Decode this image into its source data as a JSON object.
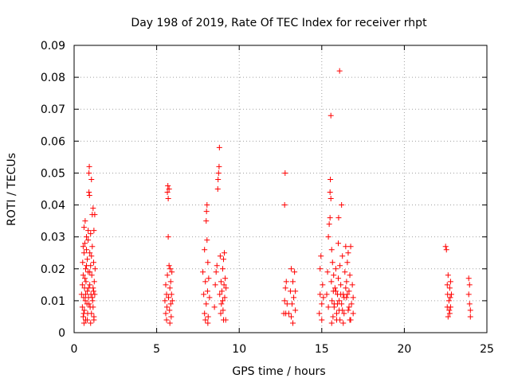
{
  "chart_data": {
    "type": "scatter",
    "title": "Day 198 of 2019, Rate Of TEC Index for receiver rhpt",
    "xlabel": "GPS time / hours",
    "ylabel": "ROTI / TECUs",
    "xlim": [
      0,
      25
    ],
    "ylim": [
      0,
      0.09
    ],
    "xticks": [
      0,
      5,
      10,
      15,
      20,
      25
    ],
    "xtick_labels": [
      "0",
      "5",
      "10",
      "15",
      "20",
      "25"
    ],
    "yticks": [
      0,
      0.01,
      0.02,
      0.03,
      0.04,
      0.05,
      0.06,
      0.07,
      0.08,
      0.09
    ],
    "ytick_labels": [
      "0",
      "0.01",
      "0.02",
      "0.03",
      "0.04",
      "0.05",
      "0.06",
      "0.07",
      "0.08",
      "0.09"
    ],
    "grid": true,
    "marker": "+",
    "color": "#ff0000",
    "series": [
      {
        "name": "ROTI",
        "points": [
          [
            0.45,
            0.012
          ],
          [
            0.5,
            0.008
          ],
          [
            0.5,
            0.015
          ],
          [
            0.52,
            0.022
          ],
          [
            0.55,
            0.005
          ],
          [
            0.55,
            0.018
          ],
          [
            0.58,
            0.011
          ],
          [
            0.6,
            0.025
          ],
          [
            0.6,
            0.033
          ],
          [
            0.62,
            0.007
          ],
          [
            0.63,
            0.014
          ],
          [
            0.65,
            0.028
          ],
          [
            0.67,
            0.035
          ],
          [
            0.68,
            0.01
          ],
          [
            0.7,
            0.004
          ],
          [
            0.7,
            0.02
          ],
          [
            0.72,
            0.016
          ],
          [
            0.75,
            0.026
          ],
          [
            0.75,
            0.03
          ],
          [
            0.78,
            0.009
          ],
          [
            0.8,
            0.013
          ],
          [
            0.8,
            0.023
          ],
          [
            0.82,
            0.006
          ],
          [
            0.85,
            0.019
          ],
          [
            0.85,
            0.032
          ],
          [
            0.87,
            0.011
          ],
          [
            0.9,
            0.044
          ],
          [
            0.9,
            0.05
          ],
          [
            0.92,
            0.052
          ],
          [
            0.93,
            0.043
          ],
          [
            0.95,
            0.025
          ],
          [
            0.95,
            0.015
          ],
          [
            0.97,
            0.008
          ],
          [
            1.0,
            0.021
          ],
          [
            1.0,
            0.031
          ],
          [
            1.02,
            0.012
          ],
          [
            1.05,
            0.006
          ],
          [
            1.05,
            0.048
          ],
          [
            1.07,
            0.018
          ],
          [
            1.1,
            0.027
          ],
          [
            1.1,
            0.037
          ],
          [
            1.12,
            0.01
          ],
          [
            1.15,
            0.014
          ],
          [
            1.15,
            0.039
          ],
          [
            1.18,
            0.022
          ],
          [
            1.2,
            0.005
          ],
          [
            1.2,
            0.032
          ],
          [
            1.22,
            0.016
          ],
          [
            1.25,
            0.012
          ],
          [
            1.25,
            0.037
          ],
          [
            1.27,
            0.02
          ],
          [
            0.6,
            0.003
          ],
          [
            0.8,
            0.004
          ],
          [
            1.0,
            0.003
          ],
          [
            1.2,
            0.004
          ],
          [
            0.7,
            0.012
          ],
          [
            0.9,
            0.009
          ],
          [
            1.1,
            0.011
          ],
          [
            0.65,
            0.017
          ],
          [
            0.95,
            0.019
          ],
          [
            1.15,
            0.008
          ],
          [
            0.55,
            0.027
          ],
          [
            0.75,
            0.021
          ],
          [
            1.05,
            0.024
          ],
          [
            0.85,
            0.029
          ],
          [
            0.58,
            0.006
          ],
          [
            0.88,
            0.014
          ],
          [
            1.18,
            0.013
          ],
          [
            5.5,
            0.01
          ],
          [
            5.55,
            0.006
          ],
          [
            5.55,
            0.015
          ],
          [
            5.6,
            0.012
          ],
          [
            5.62,
            0.008
          ],
          [
            5.65,
            0.018
          ],
          [
            5.65,
            0.044
          ],
          [
            5.68,
            0.046
          ],
          [
            5.7,
            0.03
          ],
          [
            5.7,
            0.042
          ],
          [
            5.72,
            0.011
          ],
          [
            5.75,
            0.021
          ],
          [
            5.75,
            0.045
          ],
          [
            5.78,
            0.007
          ],
          [
            5.8,
            0.014
          ],
          [
            5.82,
            0.02
          ],
          [
            5.85,
            0.009
          ],
          [
            5.85,
            0.016
          ],
          [
            5.88,
            0.005
          ],
          [
            5.9,
            0.012
          ],
          [
            5.92,
            0.019
          ],
          [
            5.95,
            0.01
          ],
          [
            5.6,
            0.004
          ],
          [
            5.8,
            0.003
          ],
          [
            7.8,
            0.019
          ],
          [
            7.85,
            0.012
          ],
          [
            7.9,
            0.006
          ],
          [
            7.9,
            0.026
          ],
          [
            7.95,
            0.016
          ],
          [
            8.0,
            0.009
          ],
          [
            8.0,
            0.035
          ],
          [
            8.02,
            0.038
          ],
          [
            8.05,
            0.029
          ],
          [
            8.05,
            0.04
          ],
          [
            8.08,
            0.013
          ],
          [
            8.1,
            0.022
          ],
          [
            8.12,
            0.005
          ],
          [
            8.15,
            0.017
          ],
          [
            8.2,
            0.011
          ],
          [
            8.5,
            0.008
          ],
          [
            8.55,
            0.015
          ],
          [
            8.6,
            0.019
          ],
          [
            8.65,
            0.021
          ],
          [
            8.7,
            0.045
          ],
          [
            8.72,
            0.048
          ],
          [
            8.75,
            0.05
          ],
          [
            8.78,
            0.052
          ],
          [
            8.8,
            0.058
          ],
          [
            8.82,
            0.012
          ],
          [
            8.85,
            0.024
          ],
          [
            8.88,
            0.006
          ],
          [
            8.9,
            0.016
          ],
          [
            8.92,
            0.009
          ],
          [
            8.95,
            0.013
          ],
          [
            9.0,
            0.02
          ],
          [
            9.0,
            0.01
          ],
          [
            9.02,
            0.007
          ],
          [
            9.05,
            0.023
          ],
          [
            9.08,
            0.015
          ],
          [
            9.1,
            0.025
          ],
          [
            9.12,
            0.011
          ],
          [
            9.15,
            0.017
          ],
          [
            9.18,
            0.004
          ],
          [
            9.2,
            0.014
          ],
          [
            7.95,
            0.004
          ],
          [
            8.1,
            0.003
          ],
          [
            9.05,
            0.004
          ],
          [
            12.7,
            0.006
          ],
          [
            12.75,
            0.01
          ],
          [
            12.75,
            0.04
          ],
          [
            12.78,
            0.05
          ],
          [
            12.8,
            0.014
          ],
          [
            12.82,
            0.006
          ],
          [
            12.85,
            0.016
          ],
          [
            12.9,
            0.009
          ],
          [
            13.0,
            0.006
          ],
          [
            13.1,
            0.013
          ],
          [
            13.15,
            0.02
          ],
          [
            13.15,
            0.005
          ],
          [
            13.2,
            0.009
          ],
          [
            13.25,
            0.016
          ],
          [
            13.25,
            0.003
          ],
          [
            13.3,
            0.011
          ],
          [
            13.35,
            0.019
          ],
          [
            13.4,
            0.007
          ],
          [
            13.4,
            0.013
          ],
          [
            14.85,
            0.006
          ],
          [
            14.9,
            0.012
          ],
          [
            14.9,
            0.02
          ],
          [
            14.95,
            0.024
          ],
          [
            15.0,
            0.009
          ],
          [
            15.0,
            0.004
          ],
          [
            15.05,
            0.015
          ],
          [
            15.1,
            0.011
          ],
          [
            15.3,
            0.012
          ],
          [
            15.35,
            0.019
          ],
          [
            15.4,
            0.008
          ],
          [
            15.4,
            0.03
          ],
          [
            15.45,
            0.034
          ],
          [
            15.5,
            0.036
          ],
          [
            15.5,
            0.044
          ],
          [
            15.52,
            0.048
          ],
          [
            15.55,
            0.042
          ],
          [
            15.55,
            0.068
          ],
          [
            15.58,
            0.016
          ],
          [
            15.6,
            0.026
          ],
          [
            15.62,
            0.01
          ],
          [
            15.65,
            0.022
          ],
          [
            15.68,
            0.005
          ],
          [
            15.7,
            0.013
          ],
          [
            15.72,
            0.018
          ],
          [
            15.75,
            0.008
          ],
          [
            15.8,
            0.014
          ],
          [
            15.85,
            0.02
          ],
          [
            15.9,
            0.006
          ],
          [
            15.95,
            0.012
          ],
          [
            16.0,
            0.017
          ],
          [
            16.0,
            0.028
          ],
          [
            16.02,
            0.036
          ],
          [
            16.05,
            0.01
          ],
          [
            16.08,
            0.082
          ],
          [
            16.1,
            0.021
          ],
          [
            16.1,
            0.004
          ],
          [
            16.15,
            0.015
          ],
          [
            16.2,
            0.04
          ],
          [
            16.2,
            0.009
          ],
          [
            16.25,
            0.024
          ],
          [
            16.3,
            0.012
          ],
          [
            16.35,
            0.006
          ],
          [
            16.4,
            0.019
          ],
          [
            16.45,
            0.027
          ],
          [
            16.5,
            0.011
          ],
          [
            16.5,
            0.016
          ],
          [
            16.55,
            0.022
          ],
          [
            16.6,
            0.007
          ],
          [
            16.6,
            0.025
          ],
          [
            16.65,
            0.013
          ],
          [
            16.7,
            0.018
          ],
          [
            16.75,
            0.004
          ],
          [
            16.75,
            0.027
          ],
          [
            16.8,
            0.009
          ],
          [
            16.85,
            0.015
          ],
          [
            16.9,
            0.011
          ],
          [
            16.9,
            0.006
          ],
          [
            15.6,
            0.003
          ],
          [
            15.9,
            0.004
          ],
          [
            16.3,
            0.003
          ],
          [
            16.7,
            0.004
          ],
          [
            15.75,
            0.009
          ],
          [
            16.05,
            0.007
          ],
          [
            16.35,
            0.011
          ],
          [
            16.65,
            0.008
          ],
          [
            15.85,
            0.013
          ],
          [
            16.15,
            0.012
          ],
          [
            16.45,
            0.014
          ],
          [
            15.95,
            0.009
          ],
          [
            16.25,
            0.007
          ],
          [
            16.55,
            0.012
          ],
          [
            22.5,
            0.027
          ],
          [
            22.55,
            0.026
          ],
          [
            22.6,
            0.015
          ],
          [
            22.6,
            0.008
          ],
          [
            22.62,
            0.012
          ],
          [
            22.65,
            0.005
          ],
          [
            22.65,
            0.018
          ],
          [
            22.7,
            0.01
          ],
          [
            22.72,
            0.007
          ],
          [
            22.75,
            0.014
          ],
          [
            22.75,
            0.006
          ],
          [
            22.78,
            0.011
          ],
          [
            22.8,
            0.016
          ],
          [
            22.8,
            0.008
          ],
          [
            22.85,
            0.012
          ],
          [
            23.9,
            0.017
          ],
          [
            23.9,
            0.012
          ],
          [
            23.95,
            0.015
          ],
          [
            23.95,
            0.009
          ],
          [
            24.0,
            0.007
          ],
          [
            24.0,
            0.005
          ]
        ]
      }
    ]
  }
}
